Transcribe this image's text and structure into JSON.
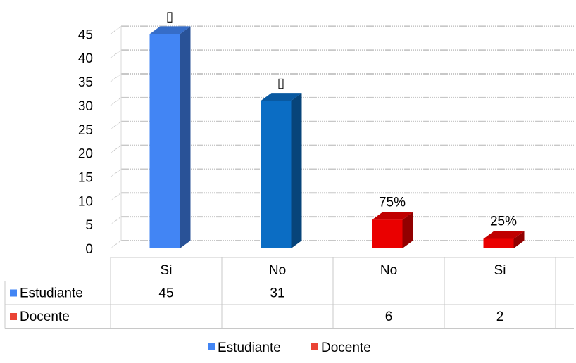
{
  "chart_data": {
    "type": "bar",
    "categories": [
      "Si",
      "No",
      "No",
      "Si"
    ],
    "series": [
      {
        "name": "Estudiante",
        "color": "#4285F4",
        "values": [
          45,
          31,
          null,
          null
        ],
        "data_labels": [
          "▯",
          "▯",
          "",
          ""
        ]
      },
      {
        "name": "Docente",
        "color": "#EA4335",
        "values": [
          null,
          null,
          6,
          2
        ],
        "data_labels": [
          "",
          "",
          "75%",
          "25%"
        ]
      }
    ],
    "ylim": [
      0,
      45
    ],
    "yticks": [
      "0",
      "5",
      "10",
      "15",
      "20",
      "25",
      "30",
      "35",
      "40",
      "45"
    ],
    "grid": true,
    "legend": "bottom",
    "data_table": true
  },
  "table": {
    "rows": [
      {
        "name": "Estudiante",
        "cells": [
          "45",
          "31",
          "",
          ""
        ]
      },
      {
        "name": "Docente",
        "cells": [
          "",
          "",
          "6",
          "2"
        ]
      }
    ]
  },
  "legend": {
    "items": [
      {
        "label": "Estudiante",
        "color": "#4285F4"
      },
      {
        "label": "Docente",
        "color": "#EA4335"
      }
    ]
  }
}
